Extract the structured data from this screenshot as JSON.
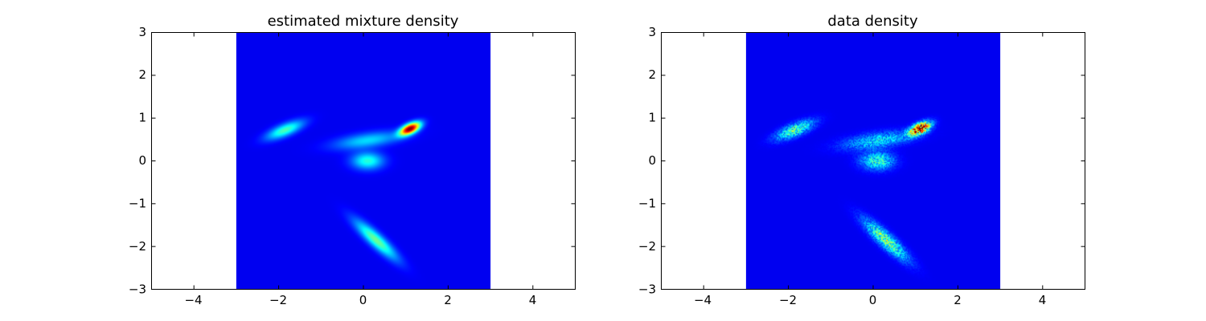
{
  "chart_data": [
    {
      "type": "heatmap",
      "title": "estimated mixture density",
      "xlabel": "",
      "ylabel": "",
      "xlim": [
        -5,
        5
      ],
      "ylim": [
        -3,
        3
      ],
      "xticks": [
        -4,
        -2,
        0,
        2,
        4
      ],
      "yticks": [
        -3,
        -2,
        -1,
        0,
        1,
        2,
        3
      ],
      "xtick_labels": [
        "−4",
        "−2",
        "0",
        "2",
        "4"
      ],
      "ytick_labels": [
        "−3",
        "−2",
        "−1",
        "0",
        "1",
        "2",
        "3"
      ],
      "image_extent": {
        "x": [
          -3,
          3
        ],
        "y": [
          -3,
          3
        ]
      },
      "colormap": "jet",
      "background_color": "#00008b",
      "grid": false,
      "legend": "none",
      "noisy": false,
      "components": [
        {
          "center": [
            1.1,
            0.75
          ],
          "sigma": [
            0.18,
            0.08
          ],
          "angle_deg": 25,
          "peak": 1.0
        },
        {
          "center": [
            -1.85,
            0.72
          ],
          "sigma": [
            0.32,
            0.1
          ],
          "angle_deg": 22,
          "peak": 0.38
        },
        {
          "center": [
            0.1,
            0.48
          ],
          "sigma": [
            0.55,
            0.12
          ],
          "angle_deg": 8,
          "peak": 0.26
        },
        {
          "center": [
            0.1,
            0.0
          ],
          "sigma": [
            0.26,
            0.14
          ],
          "angle_deg": 0,
          "peak": 0.34
        },
        {
          "center": [
            0.3,
            -1.85
          ],
          "sigma": [
            0.45,
            0.11
          ],
          "angle_deg": -42,
          "peak": 0.42
        }
      ]
    },
    {
      "type": "heatmap",
      "title": "data density",
      "xlabel": "",
      "ylabel": "",
      "xlim": [
        -5,
        5
      ],
      "ylim": [
        -3,
        3
      ],
      "xticks": [
        -4,
        -2,
        0,
        2,
        4
      ],
      "yticks": [
        -3,
        -2,
        -1,
        0,
        1,
        2,
        3
      ],
      "xtick_labels": [
        "−4",
        "−2",
        "0",
        "2",
        "4"
      ],
      "ytick_labels": [
        "−3",
        "−2",
        "−1",
        "0",
        "1",
        "2",
        "3"
      ],
      "image_extent": {
        "x": [
          -3,
          3
        ],
        "y": [
          -3,
          3
        ]
      },
      "colormap": "jet",
      "background_color": "#00008b",
      "grid": false,
      "legend": "none",
      "noisy": true,
      "components": [
        {
          "center": [
            1.1,
            0.75
          ],
          "sigma": [
            0.18,
            0.08
          ],
          "angle_deg": 25,
          "peak": 1.0
        },
        {
          "center": [
            -1.85,
            0.72
          ],
          "sigma": [
            0.32,
            0.1
          ],
          "angle_deg": 22,
          "peak": 0.38
        },
        {
          "center": [
            0.1,
            0.48
          ],
          "sigma": [
            0.55,
            0.12
          ],
          "angle_deg": 8,
          "peak": 0.26
        },
        {
          "center": [
            0.1,
            0.0
          ],
          "sigma": [
            0.26,
            0.14
          ],
          "angle_deg": 0,
          "peak": 0.34
        },
        {
          "center": [
            0.3,
            -1.85
          ],
          "sigma": [
            0.45,
            0.11
          ],
          "angle_deg": -42,
          "peak": 0.42
        }
      ]
    }
  ]
}
